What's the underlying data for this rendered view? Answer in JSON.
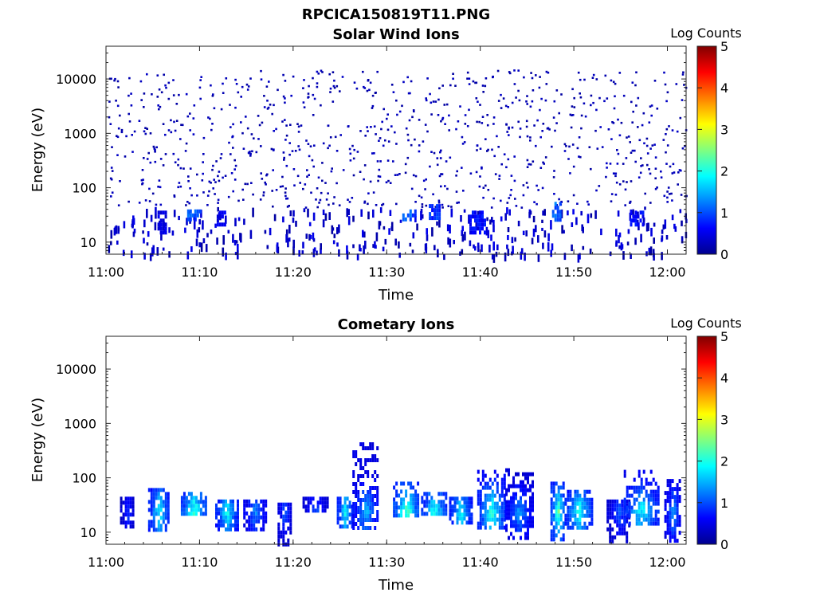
{
  "figure": {
    "title": "RPCICA150819T11.PNG"
  },
  "chart_data": [
    {
      "type": "heatmap",
      "title": "Solar Wind Ions",
      "xlabel": "Time",
      "ylabel": "Energy (eV)",
      "x_ticks": [
        "11:00",
        "11:10",
        "11:20",
        "11:30",
        "11:40",
        "11:50",
        "12:00"
      ],
      "x_range": [
        "11:00",
        "12:02"
      ],
      "y_scale": "log",
      "y_ticks": [
        "10",
        "100",
        "1000",
        "10000"
      ],
      "y_range": [
        6,
        40000
      ],
      "colorbar": {
        "label": "Log Counts",
        "ticks": [
          "0",
          "1",
          "2",
          "3",
          "4",
          "5"
        ],
        "range": [
          0,
          5
        ],
        "colormap": "jet"
      },
      "grid": false,
      "background": "#ffffff",
      "description_of_pattern": "sparse single-count pixels 50 eV - 15 keV, recurring blocks of 1-1.3 log counts near 20-40 eV",
      "blocks": [
        {
          "t_start": "11:05:30",
          "t_end": "11:06:20",
          "e_low": 16,
          "e_high": 38,
          "log_counts": 0.6
        },
        {
          "t_start": "11:08:40",
          "t_end": "11:10:00",
          "e_low": 28,
          "e_high": 40,
          "log_counts": 1.2
        },
        {
          "t_start": "11:11:50",
          "t_end": "11:12:50",
          "e_low": 20,
          "e_high": 38,
          "log_counts": 0.7
        },
        {
          "t_start": "11:31:40",
          "t_end": "11:33:00",
          "e_low": 27,
          "e_high": 40,
          "log_counts": 1.3
        },
        {
          "t_start": "11:34:30",
          "t_end": "11:35:40",
          "e_low": 30,
          "e_high": 50,
          "log_counts": 1.1
        },
        {
          "t_start": "11:38:50",
          "t_end": "11:40:30",
          "e_low": 16,
          "e_high": 38,
          "log_counts": 0.8
        },
        {
          "t_start": "11:47:40",
          "t_end": "11:48:40",
          "e_low": 26,
          "e_high": 55,
          "log_counts": 1.3
        },
        {
          "t_start": "11:56:00",
          "t_end": "11:57:30",
          "e_low": 20,
          "e_high": 38,
          "log_counts": 0.8
        }
      ]
    },
    {
      "type": "heatmap",
      "title": "Cometary Ions",
      "xlabel": "Time",
      "ylabel": "Energy (eV)",
      "x_ticks": [
        "11:00",
        "11:10",
        "11:20",
        "11:30",
        "11:40",
        "11:50",
        "12:00"
      ],
      "x_range": [
        "11:00",
        "12:02"
      ],
      "y_scale": "log",
      "y_ticks": [
        "10",
        "100",
        "1000",
        "10000"
      ],
      "y_range": [
        6,
        40000
      ],
      "colorbar": {
        "label": "Log Counts",
        "ticks": [
          "0",
          "1",
          "2",
          "3",
          "4",
          "5"
        ],
        "range": [
          0,
          5
        ],
        "colormap": "jet"
      },
      "grid": false,
      "background": "#ffffff",
      "description_of_pattern": "periodic bursts of cometary ions near 10-60 eV peaking ~2.5 log counts, spike up to ~450 eV near 11:27",
      "bursts": [
        {
          "t_start": "11:01:30",
          "t_end": "11:03:00",
          "e_low": 12,
          "e_high": 45,
          "peak_log_counts": 1.0
        },
        {
          "t_start": "11:04:30",
          "t_end": "11:06:40",
          "e_low": 12,
          "e_high": 65,
          "peak_log_counts": 2.2
        },
        {
          "t_start": "11:08:00",
          "t_end": "11:10:40",
          "e_low": 20,
          "e_high": 55,
          "peak_log_counts": 2.6
        },
        {
          "t_start": "11:11:40",
          "t_end": "11:14:00",
          "e_low": 12,
          "e_high": 40,
          "peak_log_counts": 2.2
        },
        {
          "t_start": "11:14:40",
          "t_end": "11:17:00",
          "e_low": 12,
          "e_high": 40,
          "peak_log_counts": 1.5
        },
        {
          "t_start": "11:18:20",
          "t_end": "11:19:40",
          "e_low": 6,
          "e_high": 35,
          "peak_log_counts": 1.3
        },
        {
          "t_start": "11:21:00",
          "t_end": "11:23:40",
          "e_low": 25,
          "e_high": 45,
          "peak_log_counts": 1.2
        },
        {
          "t_start": "11:24:40",
          "t_end": "11:26:20",
          "e_low": 12,
          "e_high": 45,
          "peak_log_counts": 2.2
        },
        {
          "t_start": "11:26:20",
          "t_end": "11:29:00",
          "e_low": 12,
          "e_high": 450,
          "peak_log_counts": 1.8
        },
        {
          "t_start": "11:30:40",
          "t_end": "11:33:20",
          "e_low": 20,
          "e_high": 85,
          "peak_log_counts": 2.7
        },
        {
          "t_start": "11:33:40",
          "t_end": "11:36:20",
          "e_low": 20,
          "e_high": 55,
          "peak_log_counts": 2.4
        },
        {
          "t_start": "11:36:40",
          "t_end": "11:39:00",
          "e_low": 15,
          "e_high": 45,
          "peak_log_counts": 2.2
        },
        {
          "t_start": "11:39:40",
          "t_end": "11:42:40",
          "e_low": 12,
          "e_high": 140,
          "peak_log_counts": 2.4
        },
        {
          "t_start": "11:42:40",
          "t_end": "11:45:30",
          "e_low": 8,
          "e_high": 150,
          "peak_log_counts": 1.6
        },
        {
          "t_start": "11:47:30",
          "t_end": "11:49:00",
          "e_low": 7,
          "e_high": 85,
          "peak_log_counts": 2.7
        },
        {
          "t_start": "11:49:00",
          "t_end": "11:52:00",
          "e_low": 12,
          "e_high": 60,
          "peak_log_counts": 2.3
        },
        {
          "t_start": "11:53:30",
          "t_end": "11:56:00",
          "e_low": 7,
          "e_high": 40,
          "peak_log_counts": 1.2
        },
        {
          "t_start": "11:55:20",
          "t_end": "11:59:00",
          "e_low": 15,
          "e_high": 140,
          "peak_log_counts": 2.2
        },
        {
          "t_start": "11:59:40",
          "t_end": "12:01:20",
          "e_low": 7,
          "e_high": 95,
          "peak_log_counts": 1.6
        }
      ]
    }
  ]
}
